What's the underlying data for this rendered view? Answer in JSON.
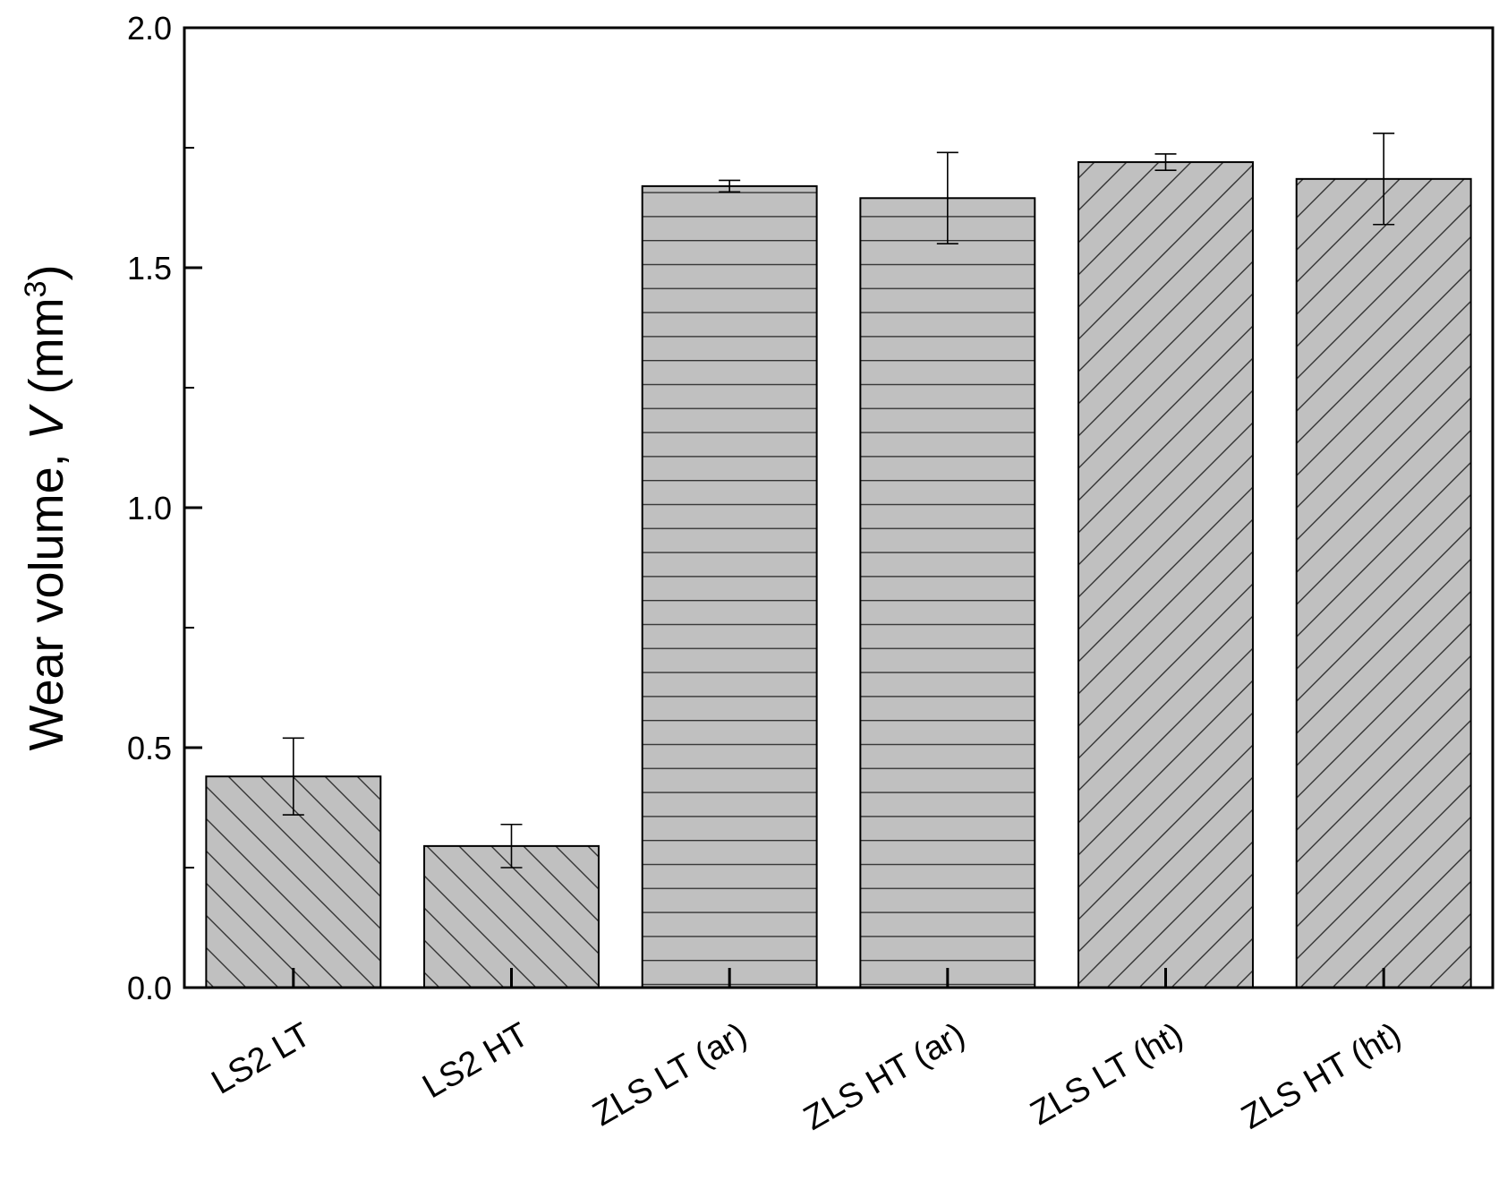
{
  "chart_data": {
    "type": "bar",
    "ylabel": "Wear volume, ",
    "ylabel_italic": "V",
    "ylabel_unit": " (mm",
    "ylabel_sup": "3",
    "ylabel_close": ")",
    "xlabel": "",
    "ylim": [
      0,
      2.0
    ],
    "yticks": [
      0.0,
      0.5,
      1.0,
      1.5,
      2.0
    ],
    "ytick_labels": [
      "0.0",
      "0.5",
      "1.0",
      "1.5",
      "2.0"
    ],
    "categories": [
      "LS2 LT",
      "LS2 HT",
      "ZLS LT (ar)",
      "ZLS HT (ar)",
      "ZLS LT (ht)",
      "ZLS HT (ht)"
    ],
    "values": [
      0.44,
      0.295,
      1.67,
      1.645,
      1.72,
      1.685
    ],
    "errors": [
      0.08,
      0.045,
      0.012,
      0.095,
      0.017,
      0.095
    ],
    "patterns": [
      "backslash",
      "backslash",
      "horizontal",
      "horizontal",
      "slash",
      "slash"
    ],
    "bar_color": "#c0c0c0",
    "grid": false
  }
}
